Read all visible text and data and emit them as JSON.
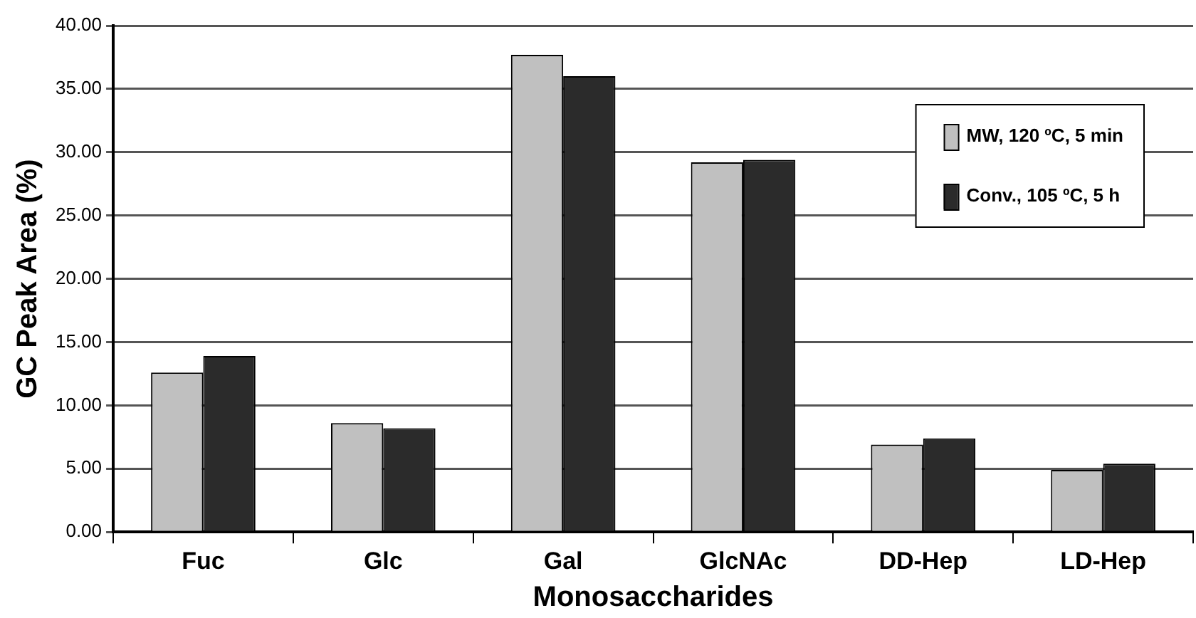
{
  "chart_data": {
    "type": "bar",
    "xlabel": "Monosaccharides",
    "ylabel": "GC Peak Area (%)",
    "categories": [
      "Fuc",
      "Glc",
      "Gal",
      "GlcNAc",
      "DD-Hep",
      "LD-Hep"
    ],
    "series": [
      {
        "name": "MW, 120 ºC, 5 min",
        "color": "#c0c0c0",
        "values": [
          12.6,
          8.6,
          37.7,
          29.2,
          6.9,
          4.9
        ]
      },
      {
        "name": "Conv., 105 ºC, 5 h",
        "color": "#2b2b2b",
        "values": [
          13.9,
          8.2,
          36.0,
          29.4,
          7.4,
          5.4
        ]
      }
    ],
    "ylim": [
      0,
      40
    ],
    "yticks": [
      {
        "value": 0,
        "label": "0.00"
      },
      {
        "value": 5,
        "label": "5.00"
      },
      {
        "value": 10,
        "label": "10.00"
      },
      {
        "value": 15,
        "label": "15.00"
      },
      {
        "value": 20,
        "label": "20.00"
      },
      {
        "value": 25,
        "label": "25.00"
      },
      {
        "value": 30,
        "label": "30.00"
      },
      {
        "value": 35,
        "label": "35.00"
      },
      {
        "value": 40,
        "label": "40.00"
      }
    ],
    "grid": "y",
    "legend": "top right"
  }
}
